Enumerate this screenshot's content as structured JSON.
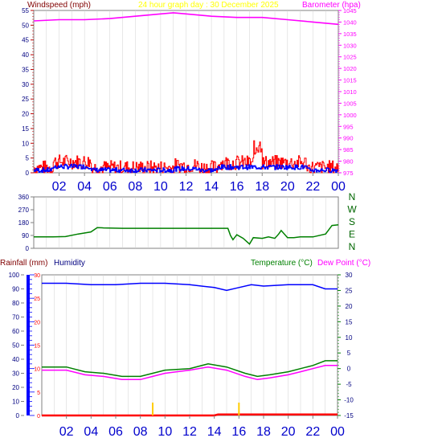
{
  "colors": {
    "wind_speed": "#ff0000",
    "wind_avg": "#0000ff",
    "barometer": "#ff00ff",
    "title": "#ffff00",
    "direction": "#008000",
    "rain_axis": "#ff0000",
    "rain_scale": "#0000ff",
    "humidity": "#0000ff",
    "temperature": "#008000",
    "dewpoint": "#ff00ff",
    "label_dark_red": "#800000",
    "humidity_label": "#000080",
    "tick_labels": "#000080",
    "time_labels": "#0000cc",
    "compass": "#006600",
    "grid": "#d0d0d0",
    "markers": "#ffcc00"
  },
  "chart_data": [
    {
      "type": "line",
      "title": "24 hour graph day : 30 December 2025",
      "x_labels": [
        "02",
        "04",
        "06",
        "08",
        "10",
        "12",
        "14",
        "16",
        "18",
        "20",
        "22",
        "00"
      ],
      "left_axis": {
        "label": "Windspeed (mph)",
        "ylim": [
          0,
          55
        ],
        "ticks": [
          0,
          5,
          10,
          15,
          20,
          25,
          30,
          35,
          40,
          45,
          50,
          55
        ]
      },
      "right_axis": {
        "label": "Barometer (hpa)",
        "ylim": [
          975,
          1045
        ],
        "ticks": [
          975,
          980,
          985,
          990,
          995,
          1000,
          1005,
          1010,
          1015,
          1020,
          1025,
          1030,
          1035,
          1040,
          1045
        ]
      },
      "series": [
        {
          "axis": "right",
          "x": [
            0,
            2,
            4,
            6,
            8,
            10,
            11,
            12,
            14,
            16,
            18,
            20,
            22,
            24
          ],
          "values": [
            1040.5,
            1041,
            1041,
            1041.5,
            1042.5,
            1043.5,
            1044,
            1043.5,
            1042.5,
            1042,
            1042,
            1041,
            1040,
            1039
          ]
        }
      ]
    },
    {
      "type": "line",
      "left_axis": {
        "ylim": [
          0,
          360
        ],
        "ticks": [
          0,
          90,
          180,
          270,
          360
        ]
      },
      "right_labels": [
        "N",
        "W",
        "S",
        "E",
        "N"
      ],
      "series": [
        {
          "x": [
            0,
            1.5,
            2.5,
            3.5,
            4.5,
            5,
            5.5,
            7,
            10,
            14,
            15.3,
            15.5,
            15.7,
            16,
            16.5,
            17,
            17.3,
            18,
            18.5,
            19,
            19.3,
            19.5,
            20,
            20.5,
            21,
            22,
            23,
            23.5,
            24
          ],
          "values": [
            80,
            80,
            82,
            100,
            115,
            145,
            143,
            140,
            140,
            140,
            140,
            90,
            60,
            95,
            70,
            30,
            75,
            70,
            80,
            70,
            100,
            125,
            75,
            75,
            80,
            80,
            100,
            160,
            165
          ]
        }
      ]
    },
    {
      "type": "line",
      "left_axis": {
        "label": "Rainfall (mm)",
        "ylim": [
          0,
          30
        ],
        "ticks": [
          0,
          5,
          10,
          15,
          20,
          25,
          30
        ]
      },
      "humidity_axis": {
        "label": "Humidity",
        "ylim": [
          0,
          100
        ],
        "ticks": [
          0,
          10,
          20,
          30,
          40,
          50,
          60,
          70,
          80,
          90,
          100
        ]
      },
      "right_axis": {
        "label": "Temperature (°C)",
        "ylim": [
          -15,
          30
        ],
        "ticks": [
          -15,
          -10,
          -5,
          0,
          5,
          10,
          15,
          20,
          25,
          30
        ]
      },
      "dew_point_label": "Dew Point (°C)",
      "x_labels": [
        "02",
        "04",
        "06",
        "08",
        "10",
        "12",
        "14",
        "16",
        "18",
        "20",
        "22",
        "00"
      ],
      "series": [
        {
          "axis": "humidity",
          "x": [
            0,
            2,
            4,
            6,
            8,
            10,
            12,
            14,
            15,
            16,
            17,
            18,
            20,
            22,
            23,
            24
          ],
          "values": [
            94,
            94,
            93,
            93,
            94,
            94,
            93,
            91,
            89,
            91,
            93,
            92,
            93,
            93,
            90,
            90
          ]
        },
        {
          "axis": "right",
          "x": [
            0,
            2,
            3.5,
            5,
            6.5,
            8,
            9,
            10,
            12,
            13.5,
            15,
            16.5,
            17.5,
            18.5,
            20,
            21,
            22,
            23,
            24
          ],
          "values": [
            0.5,
            0.5,
            -1,
            -1.5,
            -2.5,
            -2.5,
            -1.5,
            -0.5,
            0,
            1.5,
            0.5,
            -1.5,
            -2.5,
            -2,
            -1,
            0,
            1,
            2.5,
            2.5
          ]
        },
        {
          "axis": "right",
          "x": [
            0,
            2,
            3.5,
            5,
            6.5,
            8,
            9,
            10,
            12,
            13.5,
            15,
            16.5,
            17.5,
            18.5,
            20,
            21,
            22,
            23,
            24
          ],
          "values": [
            -0.5,
            -0.5,
            -2,
            -2.5,
            -3.5,
            -3.5,
            -2.5,
            -1.5,
            -0.5,
            0.5,
            -0.5,
            -2.5,
            -3.5,
            -3,
            -2,
            -1,
            0,
            1,
            1
          ]
        },
        {
          "axis": "left",
          "x": [
            0,
            14,
            14.3,
            24
          ],
          "values": [
            0,
            0,
            0.2,
            0.2
          ]
        }
      ]
    }
  ]
}
